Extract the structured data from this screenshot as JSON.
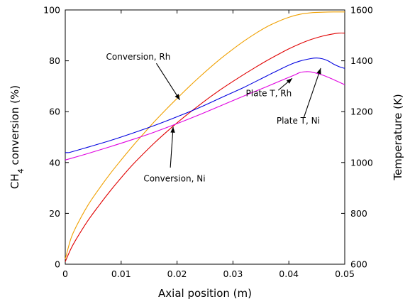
{
  "chart_data": {
    "type": "line",
    "xlabel": "Axial position (m)",
    "ylabel_left": "CH4 conversion (%)",
    "ylabel_left_main": "CH",
    "ylabel_left_sub": "4",
    "ylabel_left_rest": " conversion (%)",
    "ylabel_right": "Temperature (K)",
    "xlim": [
      0,
      0.05
    ],
    "ylim_left": [
      0,
      100
    ],
    "ylim_right": [
      600,
      1600
    ],
    "x_ticks": [
      0,
      0.01,
      0.02,
      0.03,
      0.04,
      0.05
    ],
    "x_tick_labels": [
      "0",
      "0.01",
      "0.02",
      "0.03",
      "0.04",
      "0.05"
    ],
    "y_left_ticks": [
      0,
      20,
      40,
      60,
      80,
      100
    ],
    "y_left_tick_labels": [
      "0",
      "20",
      "40",
      "60",
      "80",
      "100"
    ],
    "y_right_ticks": [
      600,
      800,
      1000,
      1200,
      1400,
      1600
    ],
    "y_right_tick_labels": [
      "600",
      "800",
      "1000",
      "1200",
      "1400",
      "1600"
    ],
    "grid": false,
    "series": [
      {
        "axis": "left",
        "color": "#f0a000",
        "x": [
          0,
          0.001,
          0.002,
          0.004,
          0.006,
          0.008,
          0.01,
          0.012,
          0.014,
          0.016,
          0.018,
          0.02,
          0.022,
          0.024,
          0.026,
          0.028,
          0.03,
          0.032,
          0.034,
          0.036,
          0.038,
          0.04,
          0.042,
          0.044,
          0.046,
          0.048,
          0.05
        ],
        "y": [
          2,
          10,
          15,
          23,
          29.5,
          35.5,
          41,
          46.3,
          51.3,
          56.2,
          60.8,
          65.2,
          69.5,
          73.6,
          77.5,
          81.2,
          84.6,
          87.8,
          90.7,
          93.3,
          95.4,
          97.1,
          98.3,
          98.9,
          99.1,
          99.2,
          99.2
        ]
      },
      {
        "axis": "left",
        "color": "#e00000",
        "x": [
          0,
          0.001,
          0.002,
          0.004,
          0.006,
          0.008,
          0.01,
          0.012,
          0.014,
          0.016,
          0.018,
          0.02,
          0.022,
          0.024,
          0.026,
          0.028,
          0.03,
          0.032,
          0.034,
          0.036,
          0.038,
          0.04,
          0.042,
          0.044,
          0.046,
          0.048,
          0.049,
          0.05
        ],
        "y": [
          1,
          6,
          10,
          17,
          23,
          28.7,
          34,
          39,
          43.5,
          47.8,
          51.8,
          55.6,
          59.2,
          62.6,
          65.9,
          69,
          71.9,
          74.7,
          77.4,
          80,
          82.4,
          84.7,
          86.7,
          88.4,
          89.7,
          90.6,
          90.9,
          90.9
        ]
      },
      {
        "axis": "right",
        "color": "#0000e0",
        "x": [
          0,
          0.0005,
          0.001,
          0.004,
          0.008,
          0.012,
          0.016,
          0.02,
          0.024,
          0.028,
          0.032,
          0.036,
          0.04,
          0.042,
          0.044,
          0.045,
          0.046,
          0.047,
          0.048,
          0.049,
          0.05
        ],
        "y": [
          1039,
          1039,
          1041,
          1060,
          1086,
          1115,
          1146,
          1180,
          1216,
          1256,
          1296,
          1340,
          1383,
          1399,
          1409,
          1411,
          1408,
          1400,
          1387,
          1377,
          1370
        ]
      },
      {
        "axis": "right",
        "color": "#e000e0",
        "x": [
          0,
          0.001,
          0.004,
          0.008,
          0.012,
          0.016,
          0.02,
          0.024,
          0.028,
          0.032,
          0.036,
          0.039,
          0.041,
          0.042,
          0.043,
          0.044,
          0.046,
          0.048,
          0.05
        ],
        "y": [
          1010,
          1016,
          1035,
          1062,
          1090,
          1120,
          1153,
          1188,
          1225,
          1262,
          1298,
          1326,
          1344,
          1354,
          1357,
          1356,
          1344,
          1326,
          1306
        ]
      }
    ],
    "annotations": [
      {
        "text": "Conversion, Rh",
        "label_x": 0.0073,
        "label_y": 80.5,
        "anchor": "start",
        "arrow_from": [
          0.0163,
          79
        ],
        "arrow_to": [
          0.0205,
          64.6
        ]
      },
      {
        "text": "Conversion, Ni",
        "label_x": 0.014,
        "label_y": 32.5,
        "anchor": "start",
        "arrow_from": [
          0.0188,
          38
        ],
        "arrow_to": [
          0.0193,
          54
        ]
      },
      {
        "text": "Plate T, Rh",
        "label_x": 0.0323,
        "label_y": 1260,
        "anchor": "start",
        "arrow_from": [
          0.0381,
          1284
        ],
        "arrow_to": [
          0.0406,
          1331
        ]
      },
      {
        "text": "Plate T, Ni",
        "label_x": 0.0378,
        "label_y": 1153,
        "anchor": "start",
        "arrow_from": [
          0.0427,
          1178
        ],
        "arrow_to": [
          0.0457,
          1371
        ]
      }
    ]
  }
}
